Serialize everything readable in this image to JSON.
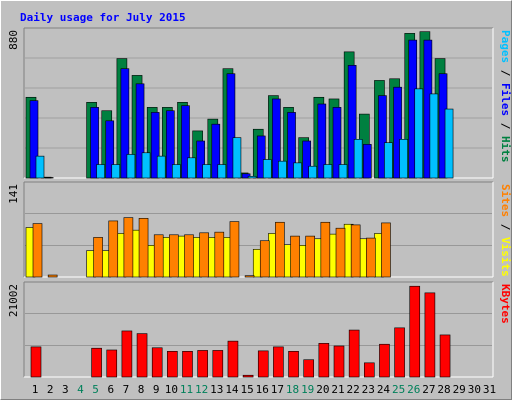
{
  "chart_data": {
    "type": "bar",
    "title": "Daily usage for July 2015",
    "days": [
      "1",
      "2",
      "3",
      "4",
      "5",
      "6",
      "7",
      "8",
      "9",
      "10",
      "11",
      "12",
      "13",
      "14",
      "15",
      "16",
      "17",
      "18",
      "19",
      "20",
      "21",
      "22",
      "23",
      "24",
      "25",
      "26",
      "27",
      "28",
      "29",
      "30",
      "31"
    ],
    "weekend_days": [
      "4",
      "5",
      "11",
      "12",
      "18",
      "19",
      "25",
      "26"
    ],
    "panels": [
      {
        "id": "usage",
        "ylabel": "Pages / Files / Hits",
        "max_label": "880",
        "ymax": 880,
        "series": [
          {
            "name": "Hits",
            "color": "#008040",
            "values": [
              480,
              5,
              0,
              0,
              450,
              400,
              710,
              610,
              420,
              420,
              450,
              280,
              350,
              650,
              30,
              290,
              490,
              420,
              240,
              480,
              470,
              750,
              380,
              580,
              590,
              860,
              870,
              710,
              0,
              0,
              0
            ]
          },
          {
            "name": "Files",
            "color": "#0000ff",
            "values": [
              460,
              3,
              0,
              0,
              420,
              340,
              650,
              560,
              390,
              400,
              430,
              220,
              320,
              620,
              25,
              250,
              470,
              390,
              220,
              440,
              420,
              670,
              200,
              490,
              540,
              820,
              820,
              620,
              0,
              0,
              0
            ]
          },
          {
            "name": "Pages",
            "color": "#00c0ff",
            "values": [
              130,
              0,
              0,
              0,
              80,
              80,
              140,
              150,
              130,
              80,
              120,
              80,
              80,
              240,
              10,
              110,
              100,
              90,
              70,
              80,
              80,
              230,
              0,
              210,
              230,
              530,
              500,
              410,
              0,
              0,
              0
            ]
          }
        ]
      },
      {
        "id": "visits",
        "ylabel": "Sites / Visits",
        "max_label": "141",
        "ymax": 141,
        "series": [
          {
            "name": "Visits",
            "color": "#ffff00",
            "values": [
              75,
              0,
              0,
              0,
              40,
              40,
              66,
              71,
              48,
              60,
              62,
              60,
              60,
              60,
              0,
              42,
              66,
              49,
              48,
              58,
              65,
              80,
              58,
              66,
              0,
              0,
              0,
              0,
              0,
              0,
              0
            ]
          },
          {
            "name": "Sites",
            "color": "#ff8000",
            "values": [
              81,
              3,
              0,
              0,
              60,
              85,
              90,
              89,
              64,
              64,
              64,
              67,
              68,
              84,
              2,
              55,
              83,
              62,
              62,
              83,
              74,
              79,
              59,
              82,
              0,
              0,
              0,
              0,
              0,
              0,
              0
            ]
          }
        ]
      },
      {
        "id": "kbytes",
        "ylabel": "KBytes",
        "max_label": "21002",
        "ymax": 21002,
        "series": [
          {
            "name": "KBytes",
            "color": "#ff0000",
            "values": [
              6800,
              0,
              0,
              0,
              6500,
              6100,
              10400,
              9800,
              6600,
              5800,
              5800,
              6000,
              6000,
              8100,
              400,
              5900,
              6800,
              5800,
              3900,
              7600,
              7000,
              10600,
              3200,
              7400,
              11100,
              20500,
              19000,
              9500,
              0,
              0,
              0
            ]
          }
        ]
      }
    ]
  }
}
